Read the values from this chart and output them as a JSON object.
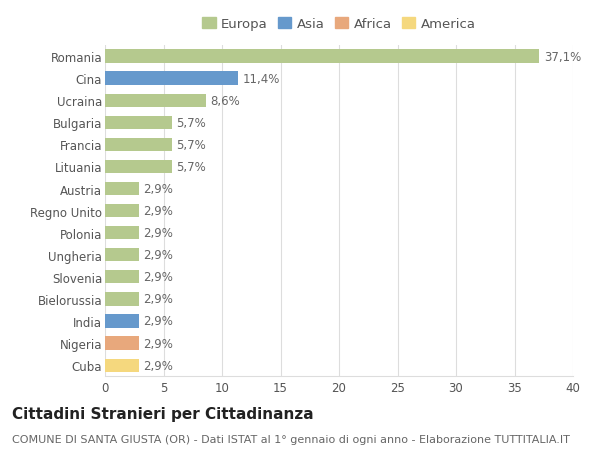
{
  "categories": [
    "Romania",
    "Cina",
    "Ucraina",
    "Bulgaria",
    "Francia",
    "Lituania",
    "Austria",
    "Regno Unito",
    "Polonia",
    "Ungheria",
    "Slovenia",
    "Bielorussia",
    "India",
    "Nigeria",
    "Cuba"
  ],
  "values": [
    37.1,
    11.4,
    8.6,
    5.7,
    5.7,
    5.7,
    2.9,
    2.9,
    2.9,
    2.9,
    2.9,
    2.9,
    2.9,
    2.9,
    2.9
  ],
  "labels": [
    "37,1%",
    "11,4%",
    "8,6%",
    "5,7%",
    "5,7%",
    "5,7%",
    "2,9%",
    "2,9%",
    "2,9%",
    "2,9%",
    "2,9%",
    "2,9%",
    "2,9%",
    "2,9%",
    "2,9%"
  ],
  "continents": [
    "Europa",
    "Asia",
    "Europa",
    "Europa",
    "Europa",
    "Europa",
    "Europa",
    "Europa",
    "Europa",
    "Europa",
    "Europa",
    "Europa",
    "Asia",
    "Africa",
    "America"
  ],
  "colors": {
    "Europa": "#b5c98e",
    "Asia": "#6699cc",
    "Africa": "#e8a87c",
    "America": "#f5d87e"
  },
  "legend_order": [
    "Europa",
    "Asia",
    "Africa",
    "America"
  ],
  "title": "Cittadini Stranieri per Cittadinanza",
  "subtitle": "COMUNE DI SANTA GIUSTA (OR) - Dati ISTAT al 1° gennaio di ogni anno - Elaborazione TUTTITALIA.IT",
  "xlim": [
    0,
    40
  ],
  "xticks": [
    0,
    5,
    10,
    15,
    20,
    25,
    30,
    35,
    40
  ],
  "background_color": "#ffffff",
  "grid_color": "#dddddd",
  "bar_height": 0.6,
  "title_fontsize": 11,
  "subtitle_fontsize": 8,
  "tick_fontsize": 8.5,
  "label_fontsize": 8.5,
  "legend_fontsize": 9.5
}
